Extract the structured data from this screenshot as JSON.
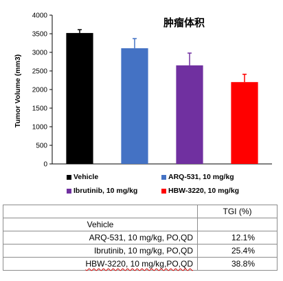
{
  "chart_data": {
    "type": "bar",
    "title": "肿瘤体积",
    "ylabel": "Tumor Volume (mm3)",
    "xlabel": "",
    "ylim": [
      0,
      4000
    ],
    "yticks": [
      0,
      500,
      1000,
      1500,
      2000,
      2500,
      3000,
      3500,
      4000
    ],
    "grid": false,
    "legend_position": "bottom",
    "categories": [
      "Vehicle",
      "ARQ-531, 10 mg/kg",
      "Ibrutinib, 10 mg/kg",
      "HBW-3220, 10 mg/kg"
    ],
    "values": [
      3520,
      3110,
      2650,
      2200
    ],
    "errors": [
      90,
      260,
      330,
      210
    ],
    "colors": [
      "#000000",
      "#4472C4",
      "#7030A0",
      "#FF0000"
    ]
  },
  "table": {
    "header": {
      "label": "",
      "value": "TGI (%)"
    },
    "rows": [
      {
        "label": "Vehicle",
        "value": ""
      },
      {
        "label": "ARQ-531, 10 mg/kg,  PO,QD",
        "value": "12.1%"
      },
      {
        "label": "Ibrutinib, 10 mg/kg, PO,QD",
        "value": "25.4%"
      },
      {
        "label": "HBW-3220, 10 mg/kg,PO,QD",
        "value": "38.8%"
      }
    ]
  }
}
